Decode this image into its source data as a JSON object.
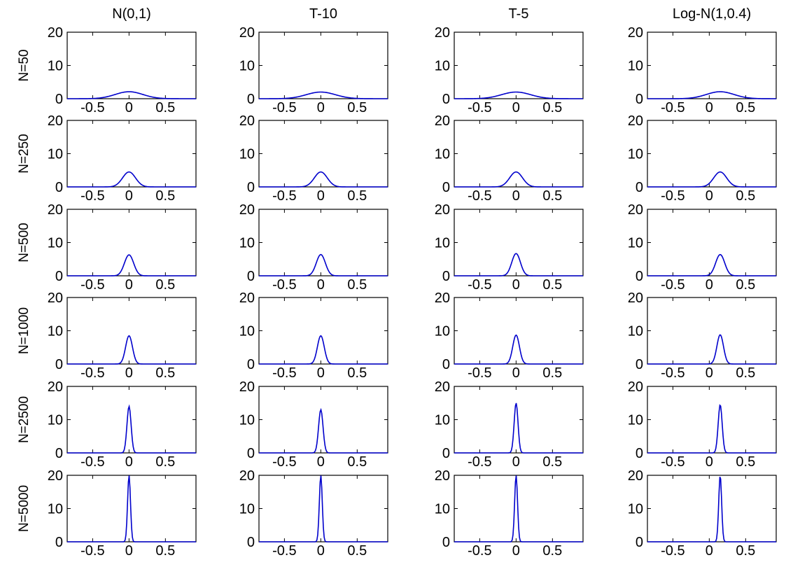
{
  "chart_data": {
    "type": "line",
    "layout": "grid",
    "columns": [
      "N(0,1)",
      "T-10",
      "T-5",
      "Log-N(1,0.4)"
    ],
    "rows": [
      "N=50",
      "N=250",
      "N=500",
      "N=1000",
      "N=2500",
      "N=5000"
    ],
    "xlim": [
      -0.85,
      0.92
    ],
    "ylim": [
      0,
      20
    ],
    "xticks": [
      "-0.5",
      "0",
      "0.5"
    ],
    "xtick_values": [
      -0.5,
      0,
      0.5
    ],
    "yticks": [
      "0",
      "10",
      "20"
    ],
    "ytick_values": [
      0,
      10,
      20
    ],
    "line_color": "#0000cc",
    "grid": false,
    "density_curves": [
      {
        "N": "N=50",
        "center": [
          0,
          0,
          0,
          0.15
        ],
        "peak": [
          2.1,
          2.0,
          2.0,
          2.1
        ]
      },
      {
        "N": "N=250",
        "center": [
          0,
          0,
          0,
          0.15
        ],
        "peak": [
          4.5,
          4.5,
          4.5,
          4.5
        ]
      },
      {
        "N": "N=500",
        "center": [
          0,
          0,
          0,
          0.15
        ],
        "peak": [
          6.3,
          6.4,
          6.7,
          6.4
        ]
      },
      {
        "N": "N=1000",
        "center": [
          0,
          0,
          0,
          0.15
        ],
        "peak": [
          8.5,
          8.5,
          8.7,
          8.8
        ]
      },
      {
        "N": "N=2500",
        "center": [
          0,
          0,
          0,
          0.15
        ],
        "peak": [
          14,
          13,
          15,
          14.5
        ]
      },
      {
        "N": "N=5000",
        "center": [
          0,
          0,
          0,
          0.15
        ],
        "peak": [
          20,
          20,
          20,
          20
        ]
      }
    ]
  }
}
